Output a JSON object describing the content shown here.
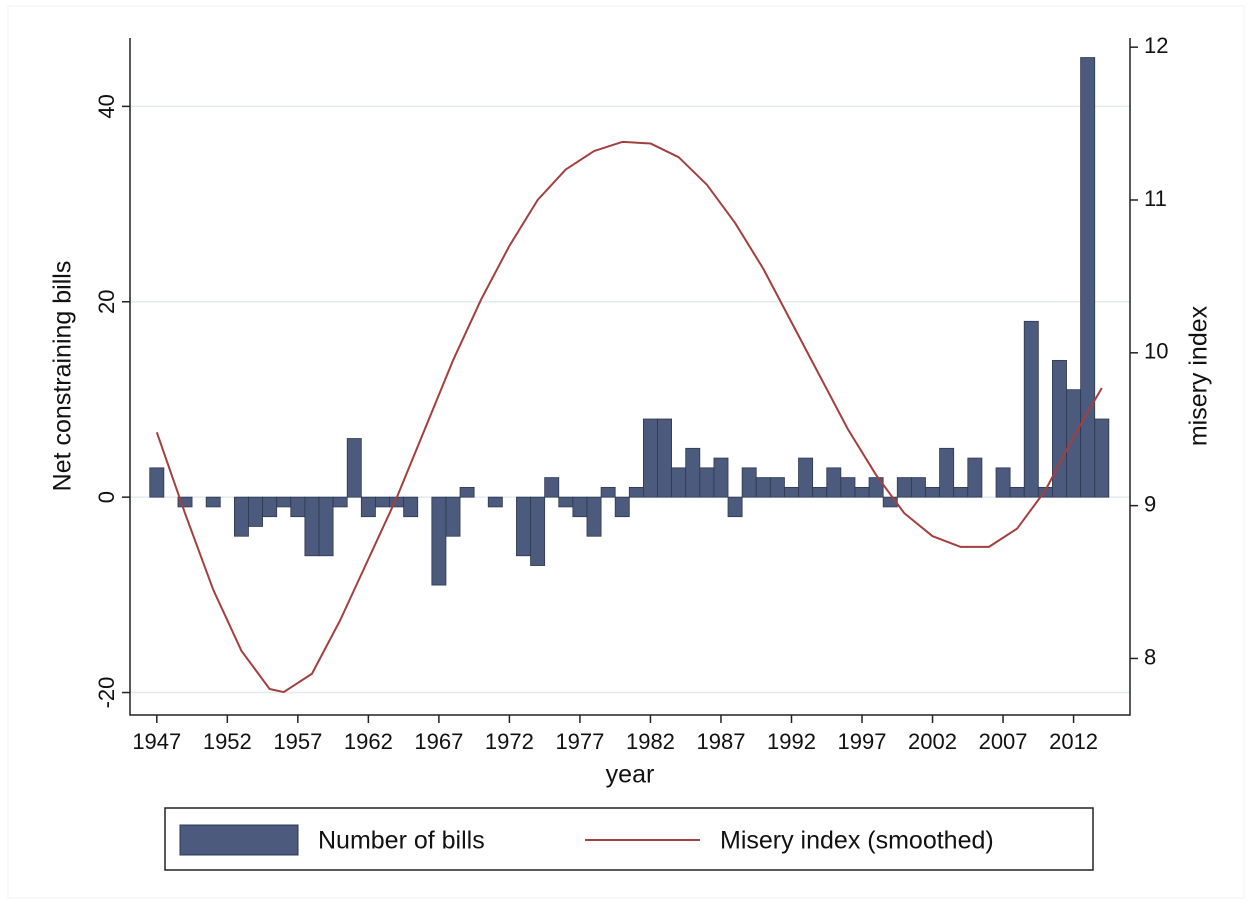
{
  "chart_data": {
    "type": "combo",
    "xlabel": "year",
    "ylabel": "Net constraining bills",
    "y2label": "misery index",
    "xlim": [
      1945.1,
      2016
    ],
    "xticks": [
      1947,
      1952,
      1957,
      1962,
      1967,
      1972,
      1977,
      1982,
      1987,
      1992,
      1997,
      2002,
      2007,
      2012
    ],
    "ylim": [
      -22.3,
      47
    ],
    "yticks": [
      -20,
      0,
      20,
      40
    ],
    "y2lim": [
      7.63,
      12.06
    ],
    "y2ticks": [
      8,
      9,
      10,
      11,
      12
    ],
    "grid": true,
    "legend": "bottom",
    "series": [
      {
        "name": "Number of bills",
        "type": "bar",
        "color": "#4b5a7d",
        "x": [
          1947,
          1948,
          1949,
          1950,
          1951,
          1952,
          1953,
          1954,
          1955,
          1956,
          1957,
          1958,
          1959,
          1960,
          1961,
          1962,
          1963,
          1964,
          1965,
          1966,
          1967,
          1968,
          1969,
          1970,
          1971,
          1972,
          1973,
          1974,
          1975,
          1976,
          1977,
          1978,
          1979,
          1980,
          1981,
          1982,
          1983,
          1984,
          1985,
          1986,
          1987,
          1988,
          1989,
          1990,
          1991,
          1992,
          1993,
          1994,
          1995,
          1996,
          1997,
          1998,
          1999,
          2000,
          2001,
          2002,
          2003,
          2004,
          2005,
          2006,
          2007,
          2008,
          2009,
          2010,
          2011,
          2012,
          2013,
          2014
        ],
        "values": [
          3,
          0,
          -1,
          0,
          -1,
          0,
          -4,
          -3,
          -2,
          -1,
          -2,
          -6,
          -6,
          -1,
          6,
          -2,
          -1,
          -1,
          -2,
          0,
          -9,
          -4,
          1,
          0,
          -1,
          0,
          -6,
          -7,
          2,
          -1,
          -2,
          -4,
          1,
          -2,
          1,
          8,
          8,
          3,
          5,
          3,
          4,
          -2,
          3,
          2,
          2,
          1,
          4,
          1,
          3,
          2,
          1,
          2,
          -1,
          2,
          2,
          1,
          5,
          1,
          4,
          0,
          3,
          1,
          18,
          1,
          14,
          11,
          45,
          8
        ]
      },
      {
        "name": "Misery index (smoothed)",
        "type": "line",
        "axis": "y2",
        "color": "#a33f3f",
        "x": [
          1947,
          1949,
          1951,
          1953,
          1955,
          1956,
          1958,
          1960,
          1962,
          1964,
          1966,
          1968,
          1970,
          1972,
          1974,
          1976,
          1978,
          1980,
          1982,
          1984,
          1986,
          1988,
          1990,
          1992,
          1994,
          1996,
          1998,
          2000,
          2002,
          2004,
          2006,
          2008,
          2010,
          2012,
          2014
        ],
        "values": [
          9.48,
          8.95,
          8.45,
          8.05,
          7.8,
          7.78,
          7.9,
          8.25,
          8.65,
          9.05,
          9.5,
          9.95,
          10.35,
          10.7,
          11.0,
          11.2,
          11.32,
          11.38,
          11.37,
          11.28,
          11.1,
          10.85,
          10.55,
          10.2,
          9.85,
          9.5,
          9.2,
          8.95,
          8.8,
          8.73,
          8.73,
          8.85,
          9.1,
          9.45,
          9.77
        ]
      }
    ]
  }
}
